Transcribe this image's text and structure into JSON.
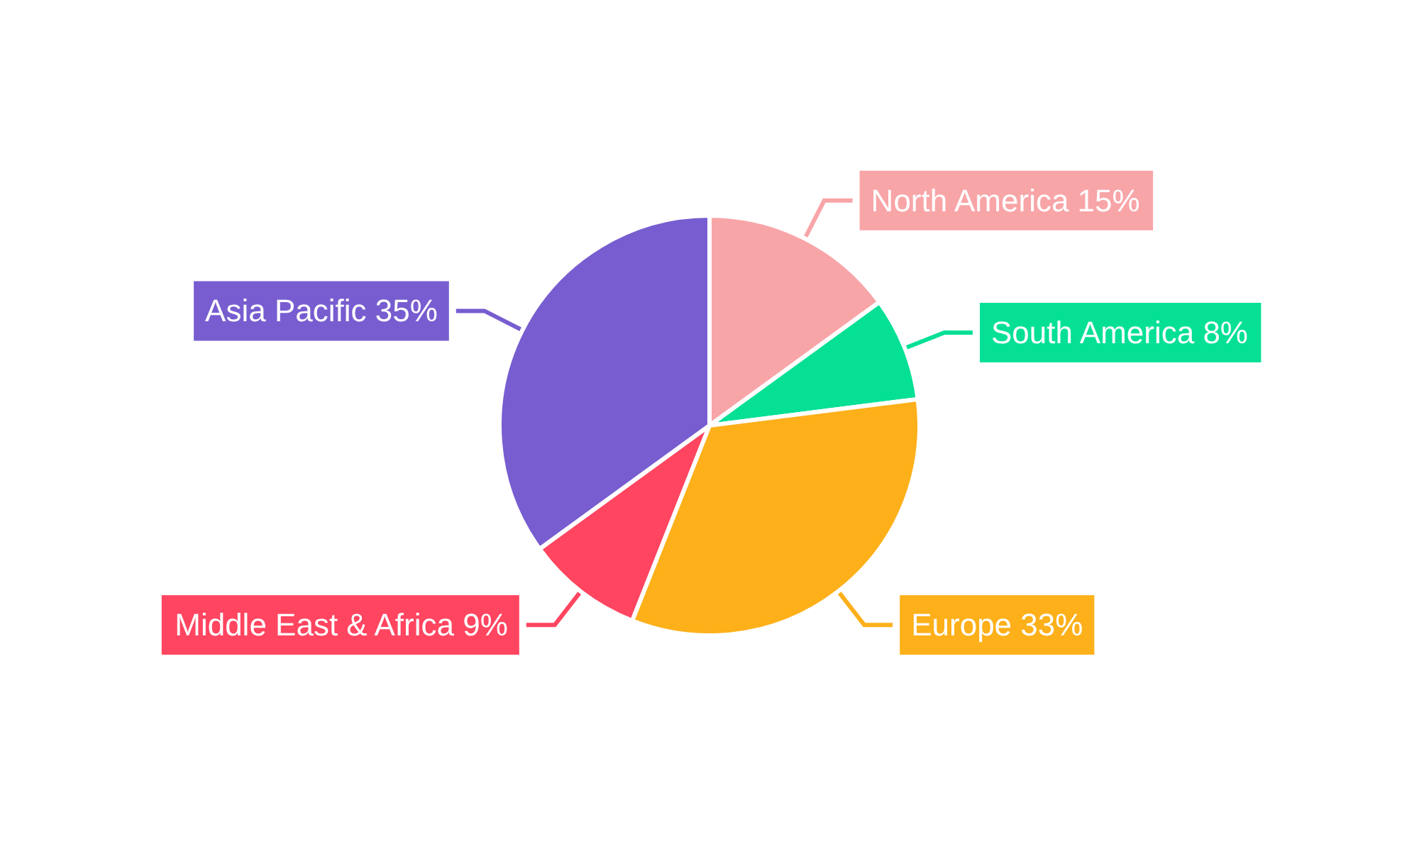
{
  "chart_data": {
    "type": "pie",
    "categories": [
      "North America",
      "South America",
      "Europe",
      "Middle East & Africa",
      "Asia Pacific"
    ],
    "values": [
      15,
      8,
      33,
      9,
      35
    ],
    "value_labels": [
      "15%",
      "8%",
      "33%",
      "9%",
      "35%"
    ],
    "colors": [
      "#f8a5a8",
      "#05e095",
      "#fdb01a",
      "#ff4560",
      "#775dd0"
    ],
    "legend": false
  }
}
